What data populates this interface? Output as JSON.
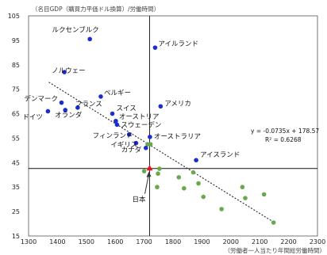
{
  "chart_data": {
    "type": "scatter",
    "title": "",
    "ylabel": "（名目GDP（購買力平価ドル換算）/労働時間）",
    "xlabel": "（労働者一人当たり年間総労働時間）",
    "xlim": [
      1300,
      2300
    ],
    "ylim": [
      15,
      105
    ],
    "xticks": [
      1300,
      1400,
      1500,
      1600,
      1700,
      1800,
      1900,
      2000,
      2100,
      2200,
      2300
    ],
    "yticks": [
      15,
      25,
      35,
      45,
      55,
      65,
      75,
      85,
      95,
      105
    ],
    "colors": {
      "highlight": "#1a2ed0",
      "other": "#6aa84f",
      "japan": "#e8111c",
      "trend": "#222222",
      "ref": "#111111"
    },
    "reference": {
      "x": 1719,
      "y": 42.6
    },
    "trendline": {
      "slope": -0.0735,
      "intercept": 178.57,
      "x_range": [
        1370,
        2150
      ]
    },
    "equation": "y = -0.0735x + 178.57",
    "r2": "R² = 0.6268",
    "highlighted": [
      {
        "name": "ルクセンブルク",
        "x": 1512,
        "y": 95.5
      },
      {
        "name": "アイルランド",
        "x": 1738,
        "y": 92.0
      },
      {
        "name": "ノルウェー",
        "x": 1424,
        "y": 82.0
      },
      {
        "name": "ベルギー",
        "x": 1550,
        "y": 72.0
      },
      {
        "name": "デンマーク",
        "x": 1414,
        "y": 69.5
      },
      {
        "name": "フランス",
        "x": 1470,
        "y": 67.5
      },
      {
        "name": "ドイツ",
        "x": 1367,
        "y": 66.0
      },
      {
        "name": "オランダ",
        "x": 1427,
        "y": 66.5
      },
      {
        "name": "スイス",
        "x": 1590,
        "y": 65.0
      },
      {
        "name": "アメリカ",
        "x": 1757,
        "y": 68.0
      },
      {
        "name": "オーストリア",
        "x": 1602,
        "y": 62.0
      },
      {
        "name": "スウェーデン",
        "x": 1606,
        "y": 60.5
      },
      {
        "name": "フィンランド",
        "x": 1648,
        "y": 56.5
      },
      {
        "name": "オーストラリア",
        "x": 1720,
        "y": 55.5
      },
      {
        "name": "イギリス",
        "x": 1672,
        "y": 53.0
      },
      {
        "name": "カナダ",
        "x": 1706,
        "y": 51.0
      },
      {
        "name": "アイスランド",
        "x": 1880,
        "y": 46.0
      }
    ],
    "japan": {
      "name": "日本",
      "x": 1719,
      "y": 42.6
    },
    "others": [
      {
        "x": 1700,
        "y": 41.5
      },
      {
        "x": 1712,
        "y": 52.5
      },
      {
        "x": 1722,
        "y": 52.5
      },
      {
        "x": 1748,
        "y": 40.5
      },
      {
        "x": 1753,
        "y": 42.5
      },
      {
        "x": 1745,
        "y": 35.0
      },
      {
        "x": 1820,
        "y": 39.0
      },
      {
        "x": 1838,
        "y": 34.5
      },
      {
        "x": 1870,
        "y": 41.0
      },
      {
        "x": 1888,
        "y": 36.5
      },
      {
        "x": 1905,
        "y": 31.0
      },
      {
        "x": 1968,
        "y": 26.0
      },
      {
        "x": 2040,
        "y": 35.0
      },
      {
        "x": 2050,
        "y": 30.5
      },
      {
        "x": 2115,
        "y": 32.0
      },
      {
        "x": 2148,
        "y": 20.5
      }
    ]
  }
}
